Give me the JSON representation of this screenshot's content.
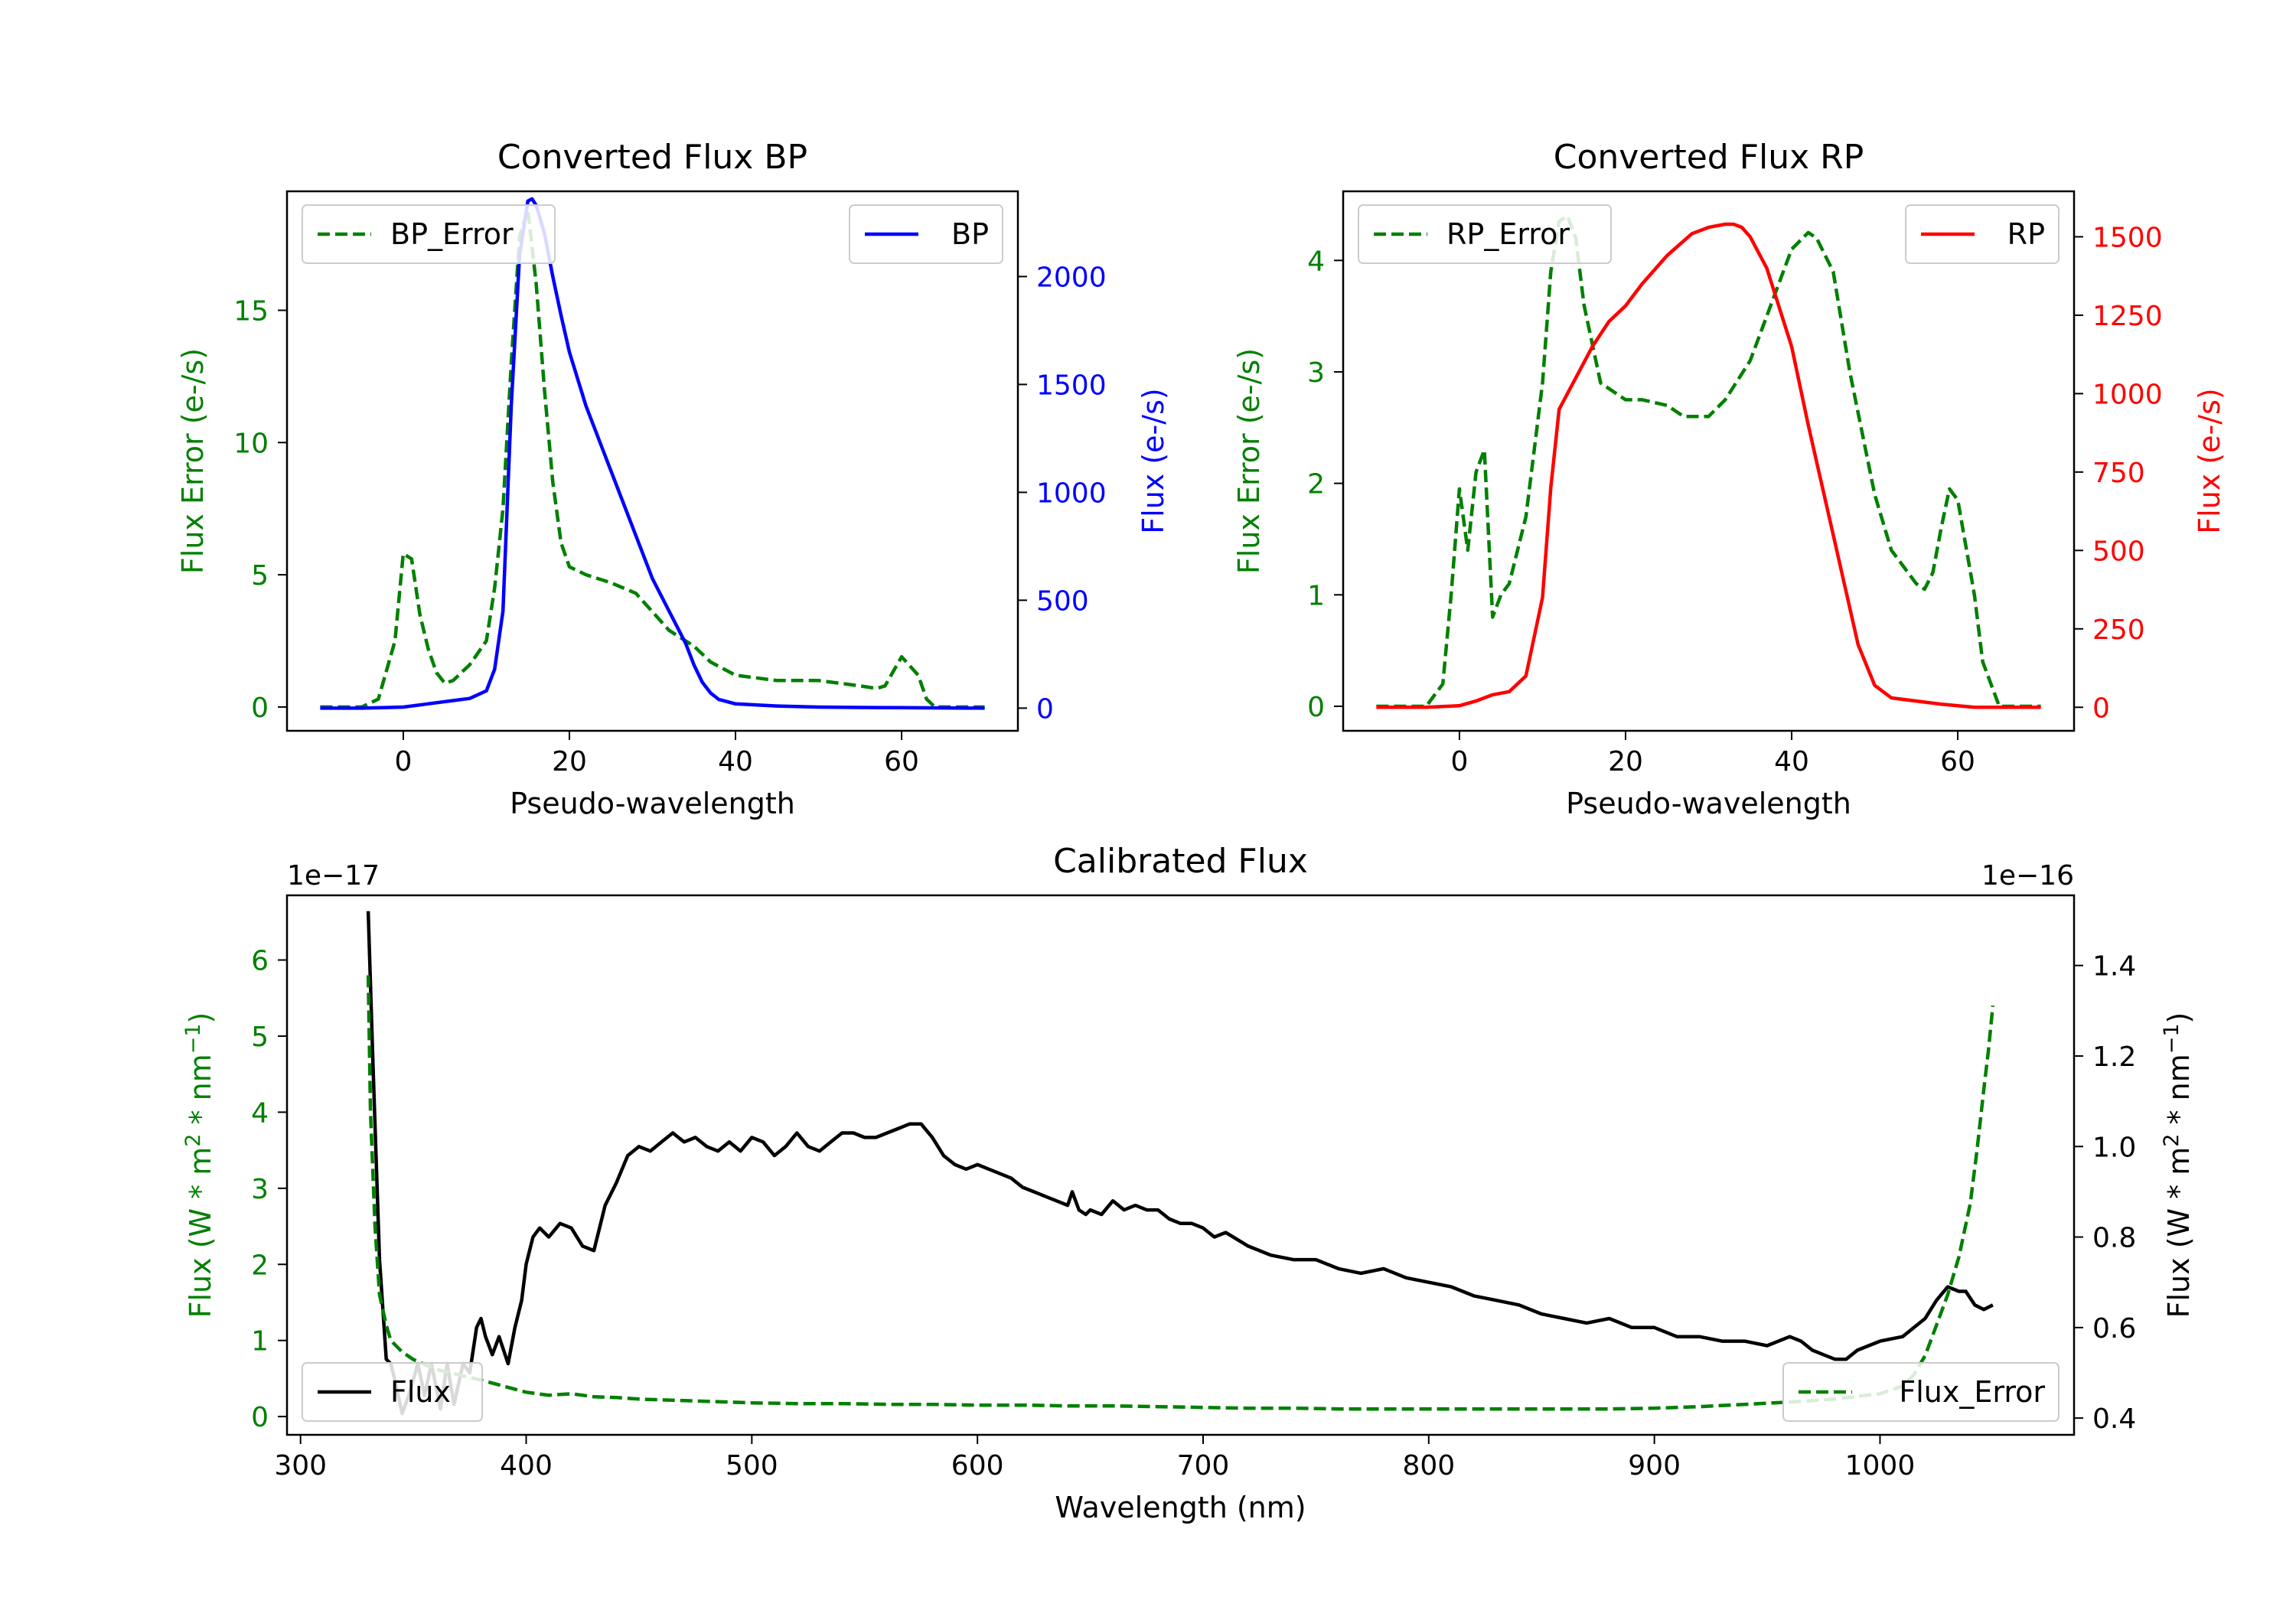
{
  "colors": {
    "green": "#008000",
    "blue": "#0000ff",
    "red": "#ff0000",
    "black": "#000000"
  },
  "chart_data": [
    {
      "id": "bp",
      "type": "line",
      "title": "Converted Flux BP",
      "xlabel": "Pseudo-wavelength",
      "y1label": "Flux Error (e-/s)",
      "y2label": "Flux (e-/s)",
      "xlim": [
        -14,
        74
      ],
      "y1lim": [
        -0.9,
        19.5
      ],
      "y2lim": [
        -105,
        2395
      ],
      "xticks": [
        0,
        20,
        40,
        60
      ],
      "xtick_labels": [
        "0",
        "20",
        "40",
        "60"
      ],
      "y1ticks": [
        0,
        5,
        10,
        15
      ],
      "y1tick_labels": [
        "0",
        "5",
        "10",
        "15"
      ],
      "y2ticks": [
        0,
        500,
        1000,
        1500,
        2000
      ],
      "y2tick_labels": [
        "0",
        "500",
        "1000",
        "1500",
        "2000"
      ],
      "legend": {
        "left": "BP_Error",
        "right": "BP"
      },
      "series": [
        {
          "name": "BP_Error",
          "axis": "y1",
          "color": "green",
          "dash": true,
          "x": [
            -10,
            -5,
            -3,
            -1,
            0,
            1,
            2,
            3,
            4,
            5,
            6,
            8,
            10,
            11,
            12,
            13,
            14,
            15,
            16,
            17,
            18,
            19,
            20,
            22,
            25,
            28,
            30,
            32,
            35,
            37,
            40,
            45,
            50,
            55,
            57,
            58,
            60,
            62,
            63,
            64,
            70
          ],
          "y": [
            0,
            0,
            0.3,
            2.5,
            5.8,
            5.6,
            3.5,
            2.2,
            1.3,
            0.9,
            1.0,
            1.6,
            2.5,
            4.5,
            7.5,
            13.0,
            17.8,
            18.8,
            16.0,
            12.0,
            8.5,
            6.2,
            5.3,
            5.0,
            4.7,
            4.3,
            3.6,
            2.9,
            2.3,
            1.7,
            1.2,
            1.0,
            1.0,
            0.8,
            0.7,
            0.8,
            1.9,
            1.2,
            0.3,
            0,
            0
          ]
        },
        {
          "name": "BP",
          "axis": "y2",
          "color": "blue",
          "dash": false,
          "x": [
            -10,
            -5,
            0,
            2,
            4,
            6,
            8,
            10,
            11,
            12,
            13,
            14,
            15,
            15.5,
            16,
            17,
            18,
            19,
            20,
            22,
            24,
            26,
            28,
            30,
            32,
            34,
            35,
            36,
            37,
            38,
            40,
            45,
            50,
            55,
            60,
            65,
            70
          ],
          "y": [
            0,
            0,
            5,
            15,
            25,
            35,
            45,
            80,
            180,
            450,
            1400,
            2100,
            2350,
            2360,
            2330,
            2200,
            2000,
            1820,
            1650,
            1400,
            1200,
            1000,
            800,
            600,
            450,
            300,
            200,
            120,
            70,
            40,
            20,
            10,
            5,
            3,
            2,
            1,
            0
          ]
        }
      ]
    },
    {
      "id": "rp",
      "type": "line",
      "title": "Converted Flux RP",
      "xlabel": "Pseudo-wavelength",
      "y1label": "Flux Error (e-/s)",
      "y2label": "Flux (e-/s)",
      "xlim": [
        -14,
        74
      ],
      "y1lim": [
        -0.22,
        4.62
      ],
      "y2lim": [
        -75,
        1645
      ],
      "xticks": [
        0,
        20,
        40,
        60
      ],
      "xtick_labels": [
        "0",
        "20",
        "40",
        "60"
      ],
      "y1ticks": [
        0,
        1,
        2,
        3,
        4
      ],
      "y1tick_labels": [
        "0",
        "1",
        "2",
        "3",
        "4"
      ],
      "y2ticks": [
        0,
        250,
        500,
        750,
        1000,
        1250,
        1500
      ],
      "y2tick_labels": [
        "0",
        "250",
        "500",
        "750",
        "1000",
        "1250",
        "1500"
      ],
      "legend": {
        "left": "RP_Error",
        "right": "RP"
      },
      "series": [
        {
          "name": "RP_Error",
          "axis": "y1",
          "color": "green",
          "dash": true,
          "x": [
            -10,
            -4,
            -2,
            -1,
            0,
            1,
            2,
            3,
            4,
            5,
            6,
            8,
            10,
            11,
            12,
            13,
            14,
            15,
            17,
            20,
            22,
            25,
            27,
            30,
            32,
            35,
            38,
            40,
            42,
            43,
            45,
            47,
            50,
            52,
            55,
            56,
            57,
            58,
            59,
            60,
            62,
            63,
            65,
            70
          ],
          "y": [
            0,
            0,
            0.2,
            1.0,
            1.95,
            1.4,
            2.1,
            2.3,
            0.8,
            1.0,
            1.1,
            1.7,
            2.9,
            3.9,
            4.35,
            4.4,
            4.2,
            3.6,
            2.9,
            2.75,
            2.75,
            2.7,
            2.6,
            2.6,
            2.75,
            3.1,
            3.7,
            4.1,
            4.25,
            4.2,
            3.9,
            3.0,
            1.9,
            1.4,
            1.1,
            1.05,
            1.2,
            1.6,
            1.95,
            1.85,
            1.0,
            0.4,
            0,
            0
          ]
        },
        {
          "name": "RP",
          "axis": "y2",
          "color": "red",
          "dash": false,
          "x": [
            -10,
            -4,
            0,
            2,
            4,
            6,
            8,
            10,
            11,
            12,
            13,
            14,
            16,
            18,
            20,
            22,
            25,
            28,
            30,
            32,
            33,
            34,
            35,
            37,
            40,
            42,
            45,
            48,
            50,
            52,
            55,
            58,
            60,
            62,
            65,
            70
          ],
          "y": [
            0,
            0,
            5,
            20,
            40,
            50,
            100,
            350,
            700,
            950,
            1000,
            1050,
            1150,
            1230,
            1280,
            1350,
            1440,
            1510,
            1530,
            1540,
            1540,
            1530,
            1500,
            1400,
            1150,
            900,
            550,
            200,
            70,
            30,
            20,
            10,
            5,
            0,
            0,
            0
          ]
        }
      ]
    },
    {
      "id": "cal",
      "type": "line",
      "title": "Calibrated Flux",
      "xlabel": "Wavelength (nm)",
      "y1label": "Flux (W * m^2 * nm^-1)",
      "y2label": "Flux (W * m^2 * nm^-1)",
      "y1offset": "1e−17",
      "y2offset": "1e−16",
      "xlim": [
        294,
        1086
      ],
      "y1lim": [
        -0.24,
        6.85
      ],
      "y2lim": [
        0.363,
        1.555
      ],
      "xticks": [
        300,
        400,
        500,
        600,
        700,
        800,
        900,
        1000
      ],
      "xtick_labels": [
        "300",
        "400",
        "500",
        "600",
        "700",
        "800",
        "900",
        "1000"
      ],
      "y1ticks": [
        0,
        1,
        2,
        3,
        4,
        5,
        6
      ],
      "y1tick_labels": [
        "0",
        "1",
        "2",
        "3",
        "4",
        "5",
        "6"
      ],
      "y2ticks": [
        0.4,
        0.6,
        0.8,
        1.0,
        1.2,
        1.4
      ],
      "y2tick_labels": [
        "0.4",
        "0.6",
        "0.8",
        "1.0",
        "1.2",
        "1.4"
      ],
      "legend": {
        "left": "Flux",
        "right": "Flux_Error"
      },
      "series": [
        {
          "name": "Flux",
          "axis": "y2",
          "color": "black",
          "dash": false,
          "x": [
            330,
            332,
            335,
            338,
            340,
            342,
            345,
            348,
            352,
            355,
            358,
            362,
            365,
            368,
            372,
            375,
            378,
            380,
            382,
            385,
            388,
            392,
            395,
            398,
            400,
            403,
            406,
            410,
            415,
            420,
            425,
            430,
            435,
            440,
            445,
            450,
            455,
            460,
            465,
            470,
            475,
            480,
            485,
            490,
            495,
            500,
            505,
            510,
            515,
            520,
            525,
            530,
            535,
            540,
            545,
            550,
            555,
            560,
            565,
            570,
            575,
            580,
            585,
            590,
            595,
            600,
            605,
            610,
            615,
            620,
            625,
            630,
            635,
            640,
            642,
            645,
            648,
            650,
            655,
            660,
            665,
            670,
            675,
            680,
            685,
            690,
            695,
            700,
            705,
            710,
            720,
            730,
            740,
            750,
            760,
            770,
            780,
            790,
            800,
            810,
            820,
            830,
            840,
            850,
            860,
            870,
            880,
            890,
            900,
            910,
            920,
            930,
            940,
            950,
            960,
            965,
            970,
            975,
            980,
            985,
            990,
            995,
            1000,
            1010,
            1020,
            1025,
            1030,
            1035,
            1038,
            1042,
            1046,
            1050
          ],
          "y": [
            1.52,
            1.2,
            0.75,
            0.53,
            0.52,
            0.48,
            0.41,
            0.45,
            0.52,
            0.45,
            0.52,
            0.42,
            0.52,
            0.43,
            0.52,
            0.5,
            0.6,
            0.62,
            0.58,
            0.54,
            0.58,
            0.52,
            0.6,
            0.66,
            0.74,
            0.8,
            0.82,
            0.8,
            0.83,
            0.82,
            0.78,
            0.77,
            0.87,
            0.92,
            0.98,
            1.0,
            0.99,
            1.01,
            1.03,
            1.01,
            1.02,
            1.0,
            0.99,
            1.01,
            0.99,
            1.02,
            1.01,
            0.98,
            1.0,
            1.03,
            1.0,
            0.99,
            1.01,
            1.03,
            1.03,
            1.02,
            1.02,
            1.03,
            1.04,
            1.05,
            1.05,
            1.02,
            0.98,
            0.96,
            0.95,
            0.96,
            0.95,
            0.94,
            0.93,
            0.91,
            0.9,
            0.89,
            0.88,
            0.87,
            0.9,
            0.86,
            0.85,
            0.86,
            0.85,
            0.88,
            0.86,
            0.87,
            0.86,
            0.86,
            0.84,
            0.83,
            0.83,
            0.82,
            0.8,
            0.81,
            0.78,
            0.76,
            0.75,
            0.75,
            0.73,
            0.72,
            0.73,
            0.71,
            0.7,
            0.69,
            0.67,
            0.66,
            0.65,
            0.63,
            0.62,
            0.61,
            0.62,
            0.6,
            0.6,
            0.58,
            0.58,
            0.57,
            0.57,
            0.56,
            0.58,
            0.57,
            0.55,
            0.54,
            0.53,
            0.53,
            0.55,
            0.56,
            0.57,
            0.58,
            0.62,
            0.66,
            0.69,
            0.68,
            0.68,
            0.65,
            0.64,
            0.65
          ]
        },
        {
          "name": "Flux_Error",
          "axis": "y1",
          "color": "green",
          "dash": true,
          "x": [
            330,
            331,
            333,
            335,
            338,
            340,
            345,
            350,
            360,
            370,
            380,
            390,
            400,
            410,
            420,
            430,
            440,
            450,
            460,
            470,
            480,
            490,
            500,
            520,
            540,
            560,
            580,
            600,
            620,
            640,
            650,
            660,
            680,
            700,
            720,
            740,
            760,
            780,
            800,
            820,
            840,
            860,
            880,
            900,
            920,
            940,
            960,
            980,
            1000,
            1010,
            1015,
            1020,
            1025,
            1030,
            1035,
            1040,
            1043,
            1046,
            1048,
            1050
          ],
          "y": [
            5.8,
            4.0,
            2.5,
            1.6,
            1.2,
            1.0,
            0.85,
            0.75,
            0.62,
            0.55,
            0.48,
            0.4,
            0.32,
            0.28,
            0.3,
            0.26,
            0.25,
            0.23,
            0.22,
            0.21,
            0.2,
            0.19,
            0.18,
            0.17,
            0.17,
            0.16,
            0.16,
            0.15,
            0.15,
            0.14,
            0.14,
            0.14,
            0.13,
            0.12,
            0.11,
            0.11,
            0.1,
            0.1,
            0.1,
            0.1,
            0.1,
            0.1,
            0.1,
            0.11,
            0.13,
            0.16,
            0.19,
            0.23,
            0.3,
            0.4,
            0.55,
            0.8,
            1.2,
            1.6,
            2.1,
            2.8,
            3.5,
            4.3,
            4.8,
            5.4
          ]
        }
      ]
    }
  ]
}
